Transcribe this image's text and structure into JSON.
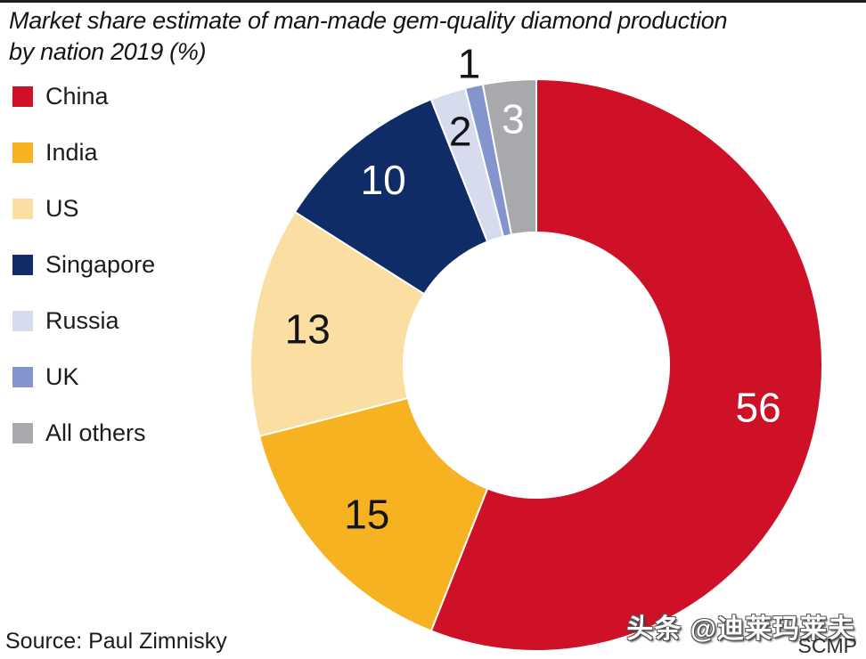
{
  "title": {
    "line1": "Market share estimate of man-made gem-quality diamond production",
    "line2": "by nation 2019  (%)"
  },
  "chart_data": {
    "type": "pie",
    "subtype": "donut",
    "title": "Market share estimate of man-made gem-quality diamond production by nation 2019 (%)",
    "unit": "%",
    "start_angle_deg_from_top": 0,
    "direction": "clockwise",
    "legend_position": "left",
    "slices": [
      {
        "label": "China",
        "value": 56,
        "color": "#CE1126",
        "value_label_color": "#ffffff",
        "label_radius_factor": 0.79,
        "label_outside": false
      },
      {
        "label": "India",
        "value": 15,
        "color": "#F6B221",
        "value_label_color": "#141414",
        "label_radius_factor": 0.79,
        "label_outside": false
      },
      {
        "label": "US",
        "value": 13,
        "color": "#FBDFA2",
        "value_label_color": "#141414",
        "label_radius_factor": 0.81,
        "label_outside": false
      },
      {
        "label": "Singapore",
        "value": 10,
        "color": "#0F2C66",
        "value_label_color": "#ffffff",
        "label_radius_factor": 0.84,
        "label_outside": false
      },
      {
        "label": "Russia",
        "value": 2,
        "color": "#D6DBEE",
        "value_label_color": "#141414",
        "label_radius_factor": 0.86,
        "label_outside": false
      },
      {
        "label": "UK",
        "value": 1,
        "color": "#8495CD",
        "value_label_color": "#141414",
        "label_radius_factor": 1.08,
        "label_outside": true
      },
      {
        "label": "All others",
        "value": 3,
        "color": "#A7A9AC",
        "value_label_color": "#ffffff",
        "label_radius_factor": 0.865,
        "label_outside": false
      }
    ]
  },
  "footer": {
    "source": "Source: Paul Zimnisky",
    "credit": "SCMP"
  },
  "watermark": {
    "text": "头条 @迪莱玛莱夫"
  }
}
